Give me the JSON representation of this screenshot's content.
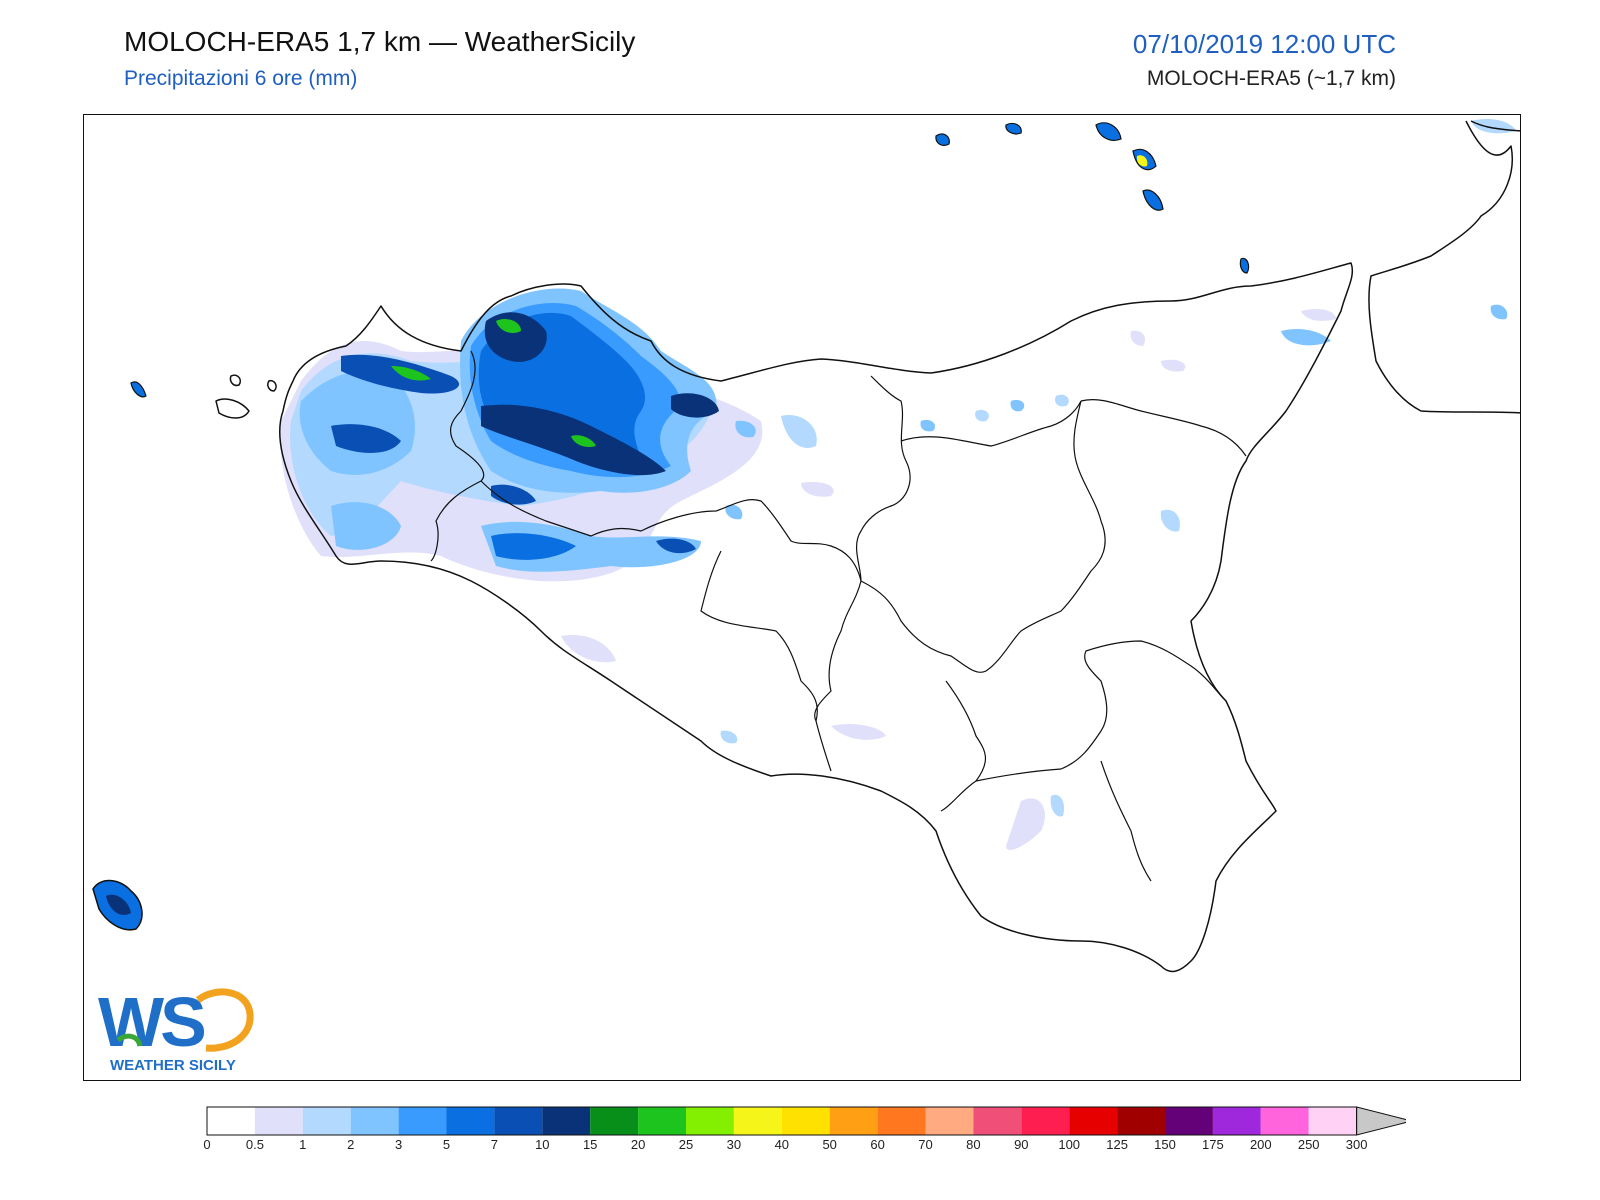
{
  "header": {
    "title": "MOLOCH-ERA5 1,7 km — WeatherSicily",
    "subtitle": "Precipitazioni 6 ore (mm)",
    "datetime": "07/10/2019 12:00 UTC",
    "model": "MOLOCH-ERA5 (~1,7 km)"
  },
  "logo": {
    "letters": "WS",
    "text": "WEATHER SICILY",
    "colors": {
      "blue": "#1f6fc8",
      "orange": "#f2a21c",
      "green": "#3aa635"
    }
  },
  "legend": {
    "unit": "mm",
    "colors": [
      "#ffffff",
      "#e0e0fb",
      "#b3d9ff",
      "#80c4ff",
      "#3a9bff",
      "#0a6fe0",
      "#0a50b4",
      "#0a3278",
      "#078f1a",
      "#1ec41e",
      "#82f000",
      "#f5f51a",
      "#ffe100",
      "#ffa014",
      "#ff7820",
      "#ffaa80",
      "#f05078",
      "#ff1e50",
      "#e60000",
      "#a00000",
      "#640078",
      "#a028dc",
      "#ff64dc",
      "#ffd2f5"
    ],
    "ticks": [
      "0",
      "0.5",
      "1",
      "2",
      "3",
      "5",
      "7",
      "10",
      "15",
      "20",
      "25",
      "30",
      "40",
      "50",
      "60",
      "70",
      "80",
      "90",
      "100",
      "125",
      "150",
      "175",
      "200",
      "250",
      "300"
    ]
  },
  "map": {
    "region": "Sicily",
    "field": "6-hour precipitation",
    "max_level_colors": {
      "light": "#e0e0fb",
      "mid": "#80c4ff",
      "heavy": "#0a50b4",
      "peak": "#1ec41e",
      "highest": "#f5f51a"
    }
  }
}
